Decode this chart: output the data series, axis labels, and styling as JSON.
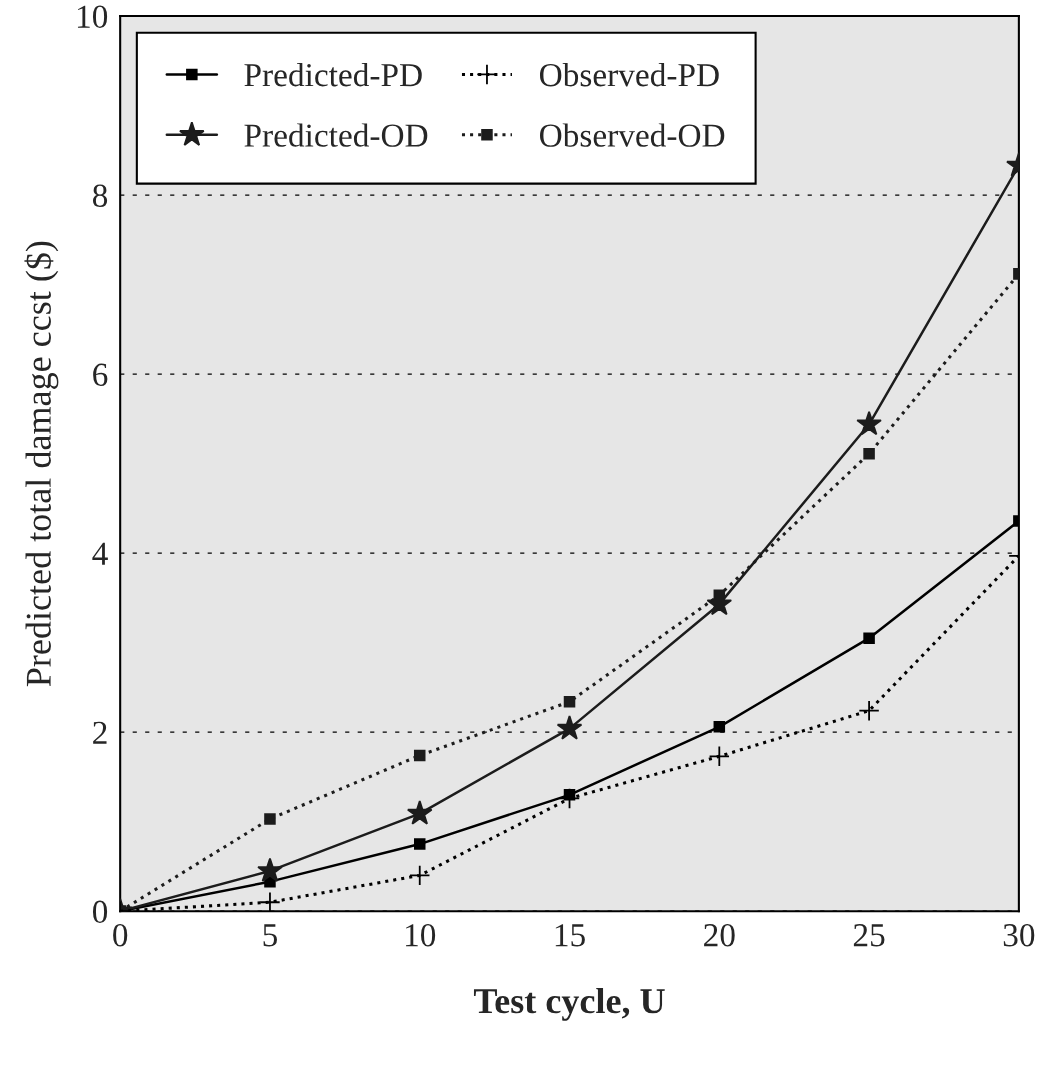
{
  "chart_data": {
    "type": "line",
    "xlabel": "Test cycle, U",
    "ylabel": "Predicted total damage ccst ($)",
    "x": [
      0,
      5,
      10,
      15,
      20,
      25,
      30
    ],
    "series": [
      {
        "name": "Predicted-PD",
        "color": "#000000",
        "marker": "square",
        "line_style": "solid",
        "values": [
          0,
          0.33,
          0.75,
          1.3,
          2.06,
          3.05,
          4.36
        ]
      },
      {
        "name": "Predicted-OD",
        "color": "#1c1c1c",
        "marker": "star",
        "line_style": "solid",
        "values": [
          0,
          0.45,
          1.09,
          2.04,
          3.43,
          5.44,
          8.33
        ]
      },
      {
        "name": "Observed-PD",
        "color": "#000000",
        "marker": "cross",
        "line_style": "dotted",
        "values": [
          0,
          0.1,
          0.4,
          1.26,
          1.73,
          2.24,
          3.97
        ]
      },
      {
        "name": "Observed-OD",
        "color": "#1c1c1c",
        "marker": "square",
        "line_style": "dotted",
        "values": [
          0,
          1.03,
          1.74,
          2.34,
          3.53,
          5.11,
          7.12
        ]
      }
    ],
    "xlim": [
      0,
      30
    ],
    "xticks": [
      0,
      5,
      10,
      15,
      20,
      25,
      30
    ],
    "ylim": [
      0,
      10
    ],
    "yticks": [
      0,
      2,
      4,
      6,
      8,
      10
    ],
    "grid": "y",
    "legend": "top left"
  }
}
